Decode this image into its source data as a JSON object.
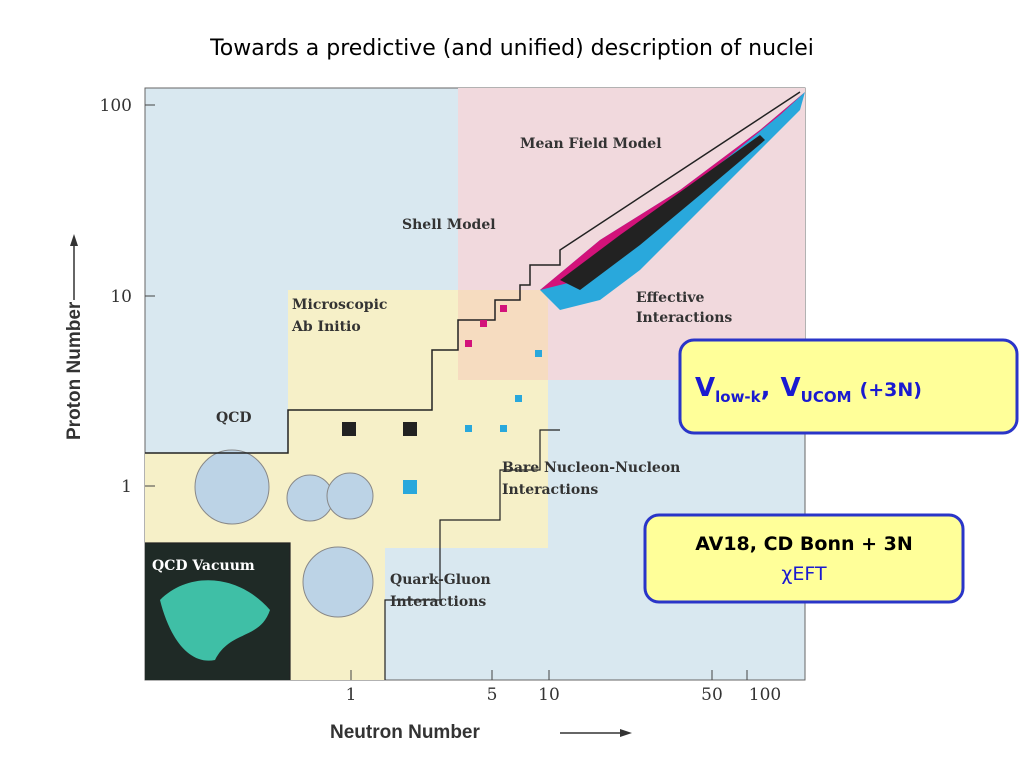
{
  "title": "Towards a predictive (and unified) description of nuclei",
  "axes": {
    "y_label": "Proton Number",
    "x_label": "Neutron Number",
    "y_ticks": [
      "100",
      "10",
      "1"
    ],
    "x_ticks": [
      "1",
      "5",
      "10",
      "50",
      "100"
    ]
  },
  "regions": [
    {
      "lines": [
        "Mean Field Model"
      ]
    },
    {
      "lines": [
        "Shell Model"
      ]
    },
    {
      "lines": [
        "Microscopic",
        "Ab Initio"
      ]
    },
    {
      "lines": [
        "Effective",
        "Interactions"
      ]
    },
    {
      "lines": [
        "QCD"
      ]
    },
    {
      "lines": [
        "Bare Nucleon-Nucleon",
        "Interactions"
      ]
    },
    {
      "lines": [
        "QCD Vacuum"
      ]
    },
    {
      "lines": [
        "Quark-Gluon",
        "Interactions"
      ]
    }
  ],
  "callouts": [
    {
      "parts": [
        "V",
        "low-k",
        ",",
        "V",
        "UCOM",
        "(+3N)"
      ]
    },
    {
      "lines": [
        "AV18, CD Bonn + 3N",
        "χEFT"
      ]
    }
  ]
}
